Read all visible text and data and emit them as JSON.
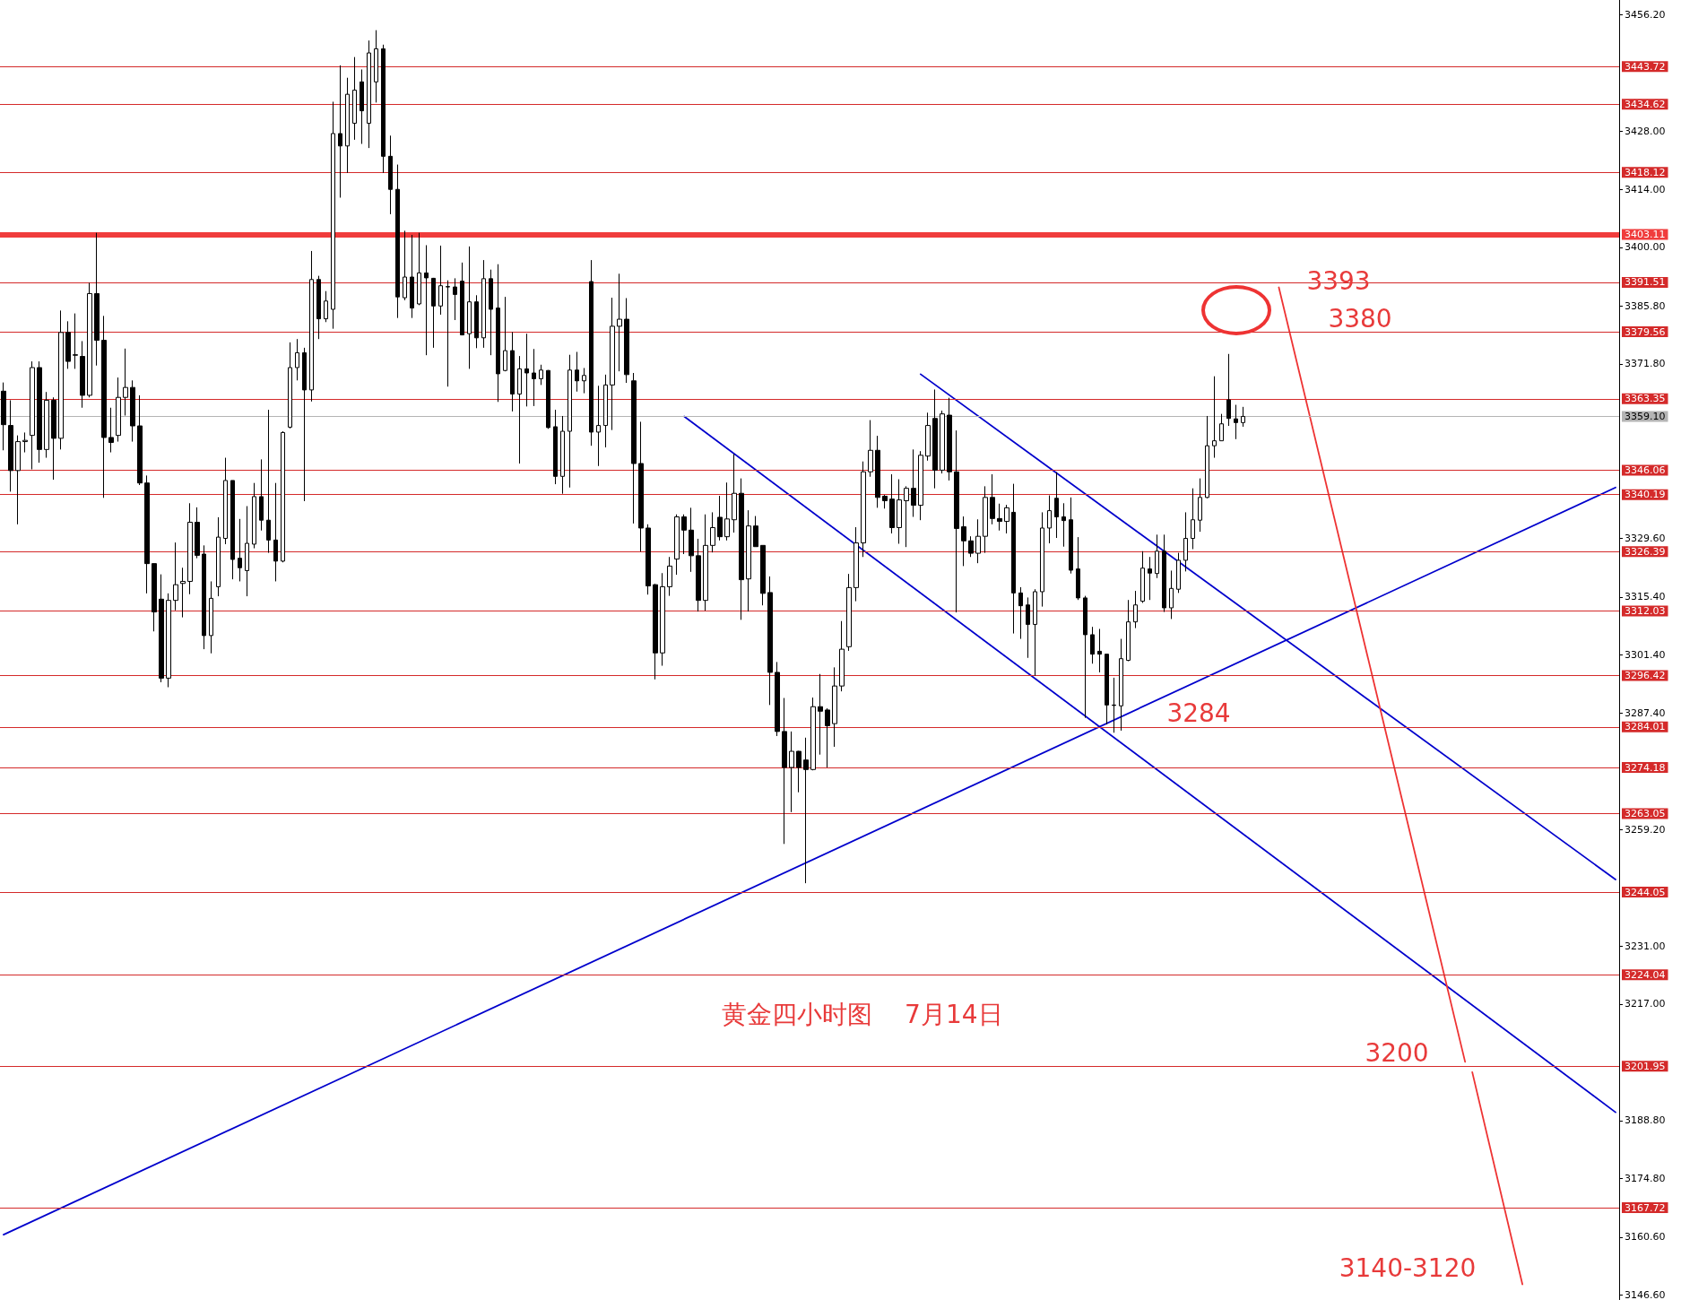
{
  "chart_data": {
    "type": "candlestick",
    "title": "黄金四小时图    7月14日",
    "color": "#000000",
    "grid": false,
    "tick_labels": "y",
    "categories": [
      null,
      null,
      null,
      null,
      null,
      null,
      null,
      null,
      null,
      null,
      null,
      null,
      null,
      null,
      null,
      null,
      null,
      null,
      null,
      null,
      null,
      null,
      null,
      null,
      null,
      null,
      null,
      null,
      null,
      null,
      null,
      null,
      null,
      null,
      null,
      null,
      null,
      null,
      null,
      null,
      null,
      null,
      null,
      null,
      null,
      null,
      null,
      null,
      null,
      null,
      null,
      null,
      null,
      null,
      null,
      null,
      null,
      null,
      null,
      null,
      null,
      null,
      null,
      null,
      null,
      null,
      null,
      null,
      null,
      null,
      null,
      null,
      null,
      null,
      null,
      null,
      null,
      null,
      null,
      null,
      null,
      null,
      null,
      null,
      null,
      null,
      null,
      null,
      null,
      null,
      null,
      null,
      null,
      null,
      null,
      null,
      null,
      null,
      null,
      null,
      null,
      null,
      null,
      null,
      null,
      null,
      null,
      null,
      null,
      null,
      null,
      null,
      null,
      null,
      null,
      null,
      null,
      null,
      null,
      null,
      null,
      null,
      null,
      null,
      null,
      null,
      null,
      null,
      null,
      null,
      null,
      null,
      null,
      null,
      null,
      null,
      null,
      null,
      null,
      null,
      null,
      null,
      null,
      null,
      null,
      null,
      null,
      null,
      null,
      null,
      null,
      null,
      null,
      null,
      null,
      null,
      null,
      null,
      null,
      null,
      null,
      null,
      null,
      null,
      null,
      null,
      null,
      null,
      null,
      null,
      null,
      null,
      null,
      null,
      null,
      null,
      null,
      null,
      null,
      null,
      null,
      null,
      null,
      null,
      null,
      null,
      null,
      null,
      null,
      null,
      null,
      null,
      null,
      null,
      null,
      null,
      null,
      null,
      null,
      null,
      null,
      null,
      null,
      null,
      null,
      null,
      null,
      null,
      null,
      null,
      null,
      null,
      null,
      null,
      null,
      null,
      null,
      null,
      null,
      null,
      null,
      null,
      null,
      null,
      null,
      null
    ],
    "ylim": [
      3145.5,
      3459.8
    ],
    "yticks": [
      {
        "value": 3456.2,
        "label": "3456.20"
      },
      {
        "value": 3428,
        "label": "3428.00"
      },
      {
        "value": 3414,
        "label": "3414.00"
      },
      {
        "value": 3400,
        "label": "3400.00"
      },
      {
        "value": 3385.8,
        "label": "3385.80"
      },
      {
        "value": 3371.8,
        "label": "3371.80"
      },
      {
        "value": 3329.6,
        "label": "3329.60"
      },
      {
        "value": 3315.4,
        "label": "3315.40"
      },
      {
        "value": 3301.4,
        "label": "3301.40"
      },
      {
        "value": 3287.4,
        "label": "3287.40"
      },
      {
        "value": 3259.2,
        "label": "3259.20"
      },
      {
        "value": 3231,
        "label": "3231.00"
      },
      {
        "value": 3217,
        "label": "3217.00"
      },
      {
        "value": 3188.8,
        "label": "3188.80"
      },
      {
        "value": 3174.8,
        "label": "3174.80"
      },
      {
        "value": 3160.6,
        "label": "3160.60"
      },
      {
        "value": 3146.6,
        "label": "3146.60"
      }
    ],
    "ohlc": [
      [
        3365.2,
        3367.3,
        3350.9,
        3357.1
      ],
      [
        3356.9,
        3363.0,
        3340.9,
        3346.0
      ],
      [
        3346.0,
        3354.5,
        3333.0,
        3353.0
      ],
      [
        3353.0,
        3355.2,
        3350.4,
        3353.3
      ],
      [
        3354.5,
        3372.4,
        3346.3,
        3370.9
      ],
      [
        3370.9,
        3372.4,
        3347.9,
        3351.1
      ],
      [
        3351.1,
        3365.0,
        3349.1,
        3363.0
      ],
      [
        3363.0,
        3363.7,
        3343.8,
        3353.8
      ],
      [
        3353.8,
        3384.7,
        3351.1,
        3379.4
      ],
      [
        3379.4,
        3382.1,
        3370.6,
        3372.4
      ],
      [
        3374.0,
        3384.0,
        3370.6,
        3373.9
      ],
      [
        3373.6,
        3377.3,
        3361.2,
        3364.2
      ],
      [
        3364.2,
        3391.4,
        3363.7,
        3388.8
      ],
      [
        3388.8,
        3403.5,
        3371.4,
        3377.5
      ],
      [
        3377.5,
        3383.4,
        3339.4,
        3354.0
      ],
      [
        3354.0,
        3361.2,
        3350.4,
        3352.8
      ],
      [
        3354.5,
        3368.5,
        3353.0,
        3363.7
      ],
      [
        3363.7,
        3375.5,
        3359.3,
        3366.1
      ],
      [
        3366.1,
        3367.8,
        3353.0,
        3356.8
      ],
      [
        3356.8,
        3364.2,
        3342.5,
        3343.0
      ],
      [
        3343.0,
        3344.8,
        3316.3,
        3323.5
      ],
      [
        3323.5,
        3323.5,
        3307.1,
        3311.8
      ],
      [
        3314.9,
        3320.9,
        3294.8,
        3295.8
      ],
      [
        3295.8,
        3316.3,
        3293.6,
        3314.6
      ],
      [
        3314.6,
        3328.6,
        3312.2,
        3318.4
      ],
      [
        3318.7,
        3322.5,
        3310.5,
        3319.2
      ],
      [
        3319.2,
        3338.1,
        3316.1,
        3333.5
      ],
      [
        3333.5,
        3337.1,
        3324.8,
        3325.5
      ],
      [
        3325.8,
        3327.9,
        3302.8,
        3306.1
      ],
      [
        3306.1,
        3319.2,
        3301.8,
        3315.1
      ],
      [
        3317.9,
        3334.7,
        3315.6,
        3329.9
      ],
      [
        3329.6,
        3349.1,
        3328.2,
        3343.6
      ],
      [
        3343.6,
        3343.6,
        3319.7,
        3324.5
      ],
      [
        3324.8,
        3334.3,
        3319.2,
        3322.5
      ],
      [
        3321.8,
        3337.4,
        3315.6,
        3328.4
      ],
      [
        3328.2,
        3343.0,
        3327.2,
        3339.7
      ],
      [
        3339.7,
        3348.7,
        3331.5,
        3334.0
      ],
      [
        3334.0,
        3360.7,
        3326.1,
        3329.2
      ],
      [
        3329.2,
        3343.0,
        3319.2,
        3324.1
      ],
      [
        3324.1,
        3355.5,
        3323.8,
        3355.2
      ],
      [
        3356.5,
        3377.0,
        3356.2,
        3370.9
      ],
      [
        3370.9,
        3377.8,
        3367.8,
        3374.5
      ],
      [
        3374.5,
        3375.7,
        3338.6,
        3365.5
      ],
      [
        3365.5,
        3399.1,
        3362.7,
        3392.2
      ],
      [
        3392.2,
        3393.1,
        3377.8,
        3382.7
      ],
      [
        3382.7,
        3389.4,
        3381.9,
        3387.0
      ],
      [
        3385.0,
        3435.2,
        3380.3,
        3427.5
      ],
      [
        3427.5,
        3444.0,
        3412.0,
        3424.5
      ],
      [
        3424.5,
        3441.0,
        3418.0,
        3437.0
      ],
      [
        3430.0,
        3446.0,
        3426.0,
        3438.0
      ],
      [
        3440.0,
        3443.0,
        3425.0,
        3433.0
      ],
      [
        3430.0,
        3450.0,
        3424.0,
        3447.0
      ],
      [
        3440.0,
        3452.5,
        3435.0,
        3448.0
      ],
      [
        3448.0,
        3449.0,
        3418.0,
        3422.0
      ],
      [
        3422.0,
        3427.0,
        3408.0,
        3414.0
      ],
      [
        3414.0,
        3420.0,
        3382.9,
        3388.0
      ],
      [
        3387.8,
        3404.0,
        3387.2,
        3392.8
      ],
      [
        3392.8,
        3403.0,
        3382.9,
        3385.3
      ],
      [
        3386.3,
        3403.5,
        3386.0,
        3393.8
      ],
      [
        3393.8,
        3400.5,
        3373.9,
        3392.6
      ],
      [
        3392.5,
        3392.6,
        3375.7,
        3385.8
      ],
      [
        3385.8,
        3400.4,
        3383.7,
        3390.7
      ],
      [
        3390.4,
        3392.0,
        3366.3,
        3390.5
      ],
      [
        3390.4,
        3392.5,
        3382.4,
        3388.6
      ],
      [
        3391.8,
        3396.3,
        3378.7,
        3378.8
      ],
      [
        3379.1,
        3400.2,
        3370.6,
        3386.8
      ],
      [
        3386.8,
        3388.4,
        3375.6,
        3378.1
      ],
      [
        3378.1,
        3396.9,
        3375.7,
        3392.4
      ],
      [
        3392.4,
        3394.6,
        3373.9,
        3385.0
      ],
      [
        3385.3,
        3395.9,
        3362.6,
        3369.4
      ],
      [
        3370.2,
        3388.0,
        3370.0,
        3375.0
      ],
      [
        3375.0,
        3379.5,
        3360.3,
        3364.5
      ],
      [
        3364.5,
        3373.7,
        3347.7,
        3370.6
      ],
      [
        3370.6,
        3379.1,
        3361.5,
        3369.6
      ],
      [
        3369.6,
        3375.4,
        3361.6,
        3368.2
      ],
      [
        3368.2,
        3371.6,
        3366.7,
        3370.3
      ],
      [
        3370.2,
        3370.3,
        3356.1,
        3356.4
      ],
      [
        3356.6,
        3360.7,
        3342.7,
        3344.6
      ],
      [
        3344.6,
        3359.2,
        3340.4,
        3355.5
      ],
      [
        3355.5,
        3374.0,
        3341.9,
        3370.3
      ],
      [
        3370.3,
        3374.7,
        3365.1,
        3367.7
      ],
      [
        3367.7,
        3370.8,
        3364.7,
        3369.0
      ],
      [
        3391.7,
        3396.9,
        3352.0,
        3355.3
      ],
      [
        3355.3,
        3366.5,
        3347.1,
        3356.9
      ],
      [
        3356.9,
        3369.2,
        3351.6,
        3366.7
      ],
      [
        3366.7,
        3387.8,
        3355.8,
        3380.9
      ],
      [
        3380.9,
        3393.6,
        3370.0,
        3382.6
      ],
      [
        3382.6,
        3387.7,
        3367.2,
        3369.2
      ],
      [
        3367.7,
        3369.6,
        3333.2,
        3347.7
      ],
      [
        3347.7,
        3357.8,
        3326.4,
        3332.1
      ],
      [
        3332.1,
        3333.0,
        3316.0,
        3318.1
      ],
      [
        3318.4,
        3318.6,
        3295.5,
        3301.9
      ],
      [
        3301.9,
        3321.2,
        3298.8,
        3317.9
      ],
      [
        3317.9,
        3325.1,
        3315.7,
        3322.9
      ],
      [
        3324.6,
        3335.4,
        3320.8,
        3334.8
      ],
      [
        3334.8,
        3335.4,
        3325.8,
        3331.6
      ],
      [
        3331.6,
        3337.0,
        3321.5,
        3325.4
      ],
      [
        3325.4,
        3329.5,
        3311.9,
        3314.6
      ],
      [
        3314.6,
        3335.4,
        3312.1,
        3327.9
      ],
      [
        3327.9,
        3335.9,
        3326.2,
        3332.2
      ],
      [
        3334.7,
        3339.9,
        3329.1,
        3330.0
      ],
      [
        3330.0,
        3343.1,
        3329.1,
        3334.3
      ],
      [
        3334.1,
        3350.0,
        3331.0,
        3340.5
      ],
      [
        3340.5,
        3344.1,
        3309.9,
        3319.6
      ],
      [
        3319.8,
        3336.4,
        3311.9,
        3332.6
      ],
      [
        3332.6,
        3335.0,
        3327.6,
        3327.6
      ],
      [
        3327.9,
        3327.9,
        3313.4,
        3316.3
      ],
      [
        3316.5,
        3320.4,
        3289.3,
        3297.2
      ],
      [
        3297.2,
        3299.7,
        3281.8,
        3282.9
      ],
      [
        3282.9,
        3291.0,
        3255.7,
        3274.2
      ],
      [
        3274.2,
        3282.9,
        3263.4,
        3278.1
      ],
      [
        3278.1,
        3278.2,
        3268.2,
        3274.2
      ],
      [
        3276.0,
        3281.4,
        3246.2,
        3273.7
      ],
      [
        3273.7,
        3291.1,
        3273.5,
        3288.9
      ],
      [
        3288.9,
        3296.8,
        3277.3,
        3287.8
      ],
      [
        3288.1,
        3288.5,
        3274.2,
        3284.3
      ],
      [
        3284.8,
        3298.4,
        3279.2,
        3293.9
      ],
      [
        3293.9,
        3309.6,
        3292.6,
        3302.8
      ],
      [
        3303.4,
        3321.0,
        3302.4,
        3317.7
      ],
      [
        3317.7,
        3332.3,
        3314.4,
        3328.5
      ],
      [
        3328.5,
        3348.2,
        3325.1,
        3345.7
      ],
      [
        3345.7,
        3358.2,
        3344.5,
        3350.9
      ],
      [
        3350.9,
        3354.4,
        3337.0,
        3339.5
      ],
      [
        3339.8,
        3340.1,
        3336.8,
        3338.7
      ],
      [
        3339.1,
        3345.1,
        3330.8,
        3332.2
      ],
      [
        3332.2,
        3343.9,
        3328.3,
        3338.9
      ],
      [
        3338.7,
        3342.2,
        3327.5,
        3341.7
      ],
      [
        3341.7,
        3351.1,
        3334.8,
        3337.6
      ],
      [
        3337.6,
        3350.7,
        3334.0,
        3349.7
      ],
      [
        3349.5,
        3360.0,
        3348.4,
        3356.9
      ],
      [
        3358.6,
        3365.6,
        3341.7,
        3346.1
      ],
      [
        3346.1,
        3360.5,
        3345.3,
        3359.7
      ],
      [
        3359.4,
        3363.6,
        3343.6,
        3345.7
      ],
      [
        3345.7,
        3355.7,
        3311.7,
        3332.0
      ],
      [
        3332.4,
        3334.9,
        3322.9,
        3329.0
      ],
      [
        3329.0,
        3330.1,
        3325.1,
        3326.0
      ],
      [
        3326.0,
        3334.2,
        3323.6,
        3330.1
      ],
      [
        3330.1,
        3342.2,
        3326.1,
        3339.5
      ],
      [
        3339.5,
        3345.1,
        3333.0,
        3334.4
      ],
      [
        3334.4,
        3338.0,
        3331.5,
        3333.7
      ],
      [
        3333.7,
        3337.7,
        3330.8,
        3337.0
      ],
      [
        3335.9,
        3342.8,
        3306.6,
        3316.4
      ],
      [
        3316.4,
        3317.8,
        3305.3,
        3313.3
      ],
      [
        3313.5,
        3315.3,
        3300.7,
        3308.8
      ],
      [
        3308.8,
        3317.3,
        3296.4,
        3316.7
      ],
      [
        3316.7,
        3335.9,
        3313.1,
        3332.1
      ],
      [
        3332.1,
        3340.0,
        3328.4,
        3336.3
      ],
      [
        3339.3,
        3345.6,
        3329.7,
        3334.8
      ],
      [
        3334.8,
        3338.1,
        3327.6,
        3333.9
      ],
      [
        3334.1,
        3339.5,
        3321.1,
        3321.9
      ],
      [
        3322.2,
        3329.9,
        3314.7,
        3315.2
      ],
      [
        3315.2,
        3315.7,
        3286.2,
        3306.3
      ],
      [
        3306.3,
        3308.2,
        3299.3,
        3301.6
      ],
      [
        3302.3,
        3307.7,
        3297.2,
        3301.6
      ],
      [
        3301.6,
        3301.6,
        3284.6,
        3289.3
      ],
      [
        3289.3,
        3295.9,
        3282.6,
        3289.2
      ],
      [
        3289.1,
        3305.3,
        3283.1,
        3300.5
      ],
      [
        3300.1,
        3314.7,
        3299.9,
        3309.4
      ],
      [
        3309.4,
        3316.9,
        3307.9,
        3313.5
      ],
      [
        3314.4,
        3326.5,
        3314.0,
        3322.4
      ],
      [
        3322.2,
        3325.1,
        3314.7,
        3321.2
      ],
      [
        3321.1,
        3330.5,
        3320.0,
        3326.5
      ],
      [
        3326.5,
        3330.5,
        3311.8,
        3312.8
      ],
      [
        3312.8,
        3321.8,
        3310.1,
        3317.5
      ],
      [
        3317.3,
        3326.1,
        3316.4,
        3324.3
      ],
      [
        3324.3,
        3335.9,
        3321.6,
        3329.6
      ],
      [
        3329.6,
        3341.7,
        3327.0,
        3334.1
      ],
      [
        3334.0,
        3344.1,
        3331.2,
        3339.5
      ],
      [
        3339.5,
        3359.2,
        3339.3,
        3352.0
      ],
      [
        3352.0,
        3368.8,
        3349.1,
        3353.2
      ],
      [
        3353.2,
        3359.7,
        3353.2,
        3357.3
      ],
      [
        3363.1,
        3374.2,
        3356.8,
        3358.6
      ],
      [
        3358.5,
        3361.9,
        3353.6,
        3357.6
      ],
      [
        3357.6,
        3361.4,
        3356.6,
        3359.1
      ],
      null,
      null,
      null,
      null,
      null,
      null,
      null,
      null,
      null,
      null,
      null,
      null,
      null,
      null,
      null,
      null,
      null,
      null,
      null,
      null,
      null,
      null,
      null,
      null,
      null,
      null,
      null,
      null,
      null,
      null,
      null,
      null,
      null,
      null,
      null,
      null,
      null,
      null,
      null,
      null,
      null,
      null,
      null,
      null,
      null,
      null,
      null,
      null,
      null,
      null,
      null,
      null
    ],
    "series": [
      {
        "type": "line",
        "color": "#0000cc",
        "values": [
          3161.2,
          null,
          null,
          null,
          null,
          null,
          null,
          null,
          null,
          null,
          null,
          null,
          null,
          null,
          null,
          null,
          null,
          null,
          null,
          null,
          null,
          null,
          null,
          null,
          null,
          null,
          null,
          null,
          null,
          null,
          null,
          null,
          null,
          null,
          null,
          null,
          null,
          null,
          null,
          null,
          null,
          null,
          null,
          null,
          null,
          null,
          null,
          null,
          null,
          null,
          null,
          null,
          null,
          null,
          null,
          null,
          null,
          null,
          null,
          null,
          null,
          null,
          null,
          null,
          null,
          null,
          null,
          null,
          null,
          null,
          null,
          null,
          null,
          null,
          null,
          null,
          null,
          null,
          null,
          null,
          null,
          null,
          null,
          null,
          null,
          null,
          null,
          null,
          null,
          null,
          null,
          null,
          null,
          null,
          null,
          null,
          null,
          null,
          null,
          null,
          null,
          null,
          null,
          null,
          null,
          null,
          null,
          null,
          null,
          null,
          null,
          null,
          null,
          null,
          null,
          null,
          null,
          null,
          null,
          null,
          null,
          null,
          null,
          null,
          null,
          null,
          null,
          null,
          null,
          null,
          null,
          null,
          null,
          null,
          null,
          null,
          null,
          null,
          null,
          null,
          null,
          null,
          null,
          null,
          null,
          null,
          null,
          null,
          null,
          null,
          null,
          null,
          null,
          null,
          null,
          null,
          null,
          null,
          null,
          null,
          null,
          null,
          null,
          null,
          null,
          null,
          null,
          null,
          null,
          null,
          null,
          null,
          null,
          null,
          null,
          null,
          null,
          null,
          null,
          null,
          null,
          null,
          null,
          null,
          null,
          null,
          null,
          null,
          null,
          null,
          null,
          null,
          null,
          null,
          null,
          null,
          null,
          null,
          null,
          null,
          null,
          null,
          null,
          null,
          null,
          null,
          null,
          null,
          null,
          null,
          null,
          null,
          null,
          null,
          null,
          null,
          null,
          null,
          null,
          null,
          null,
          null,
          null,
          null,
          null,
          3341.9
        ]
      },
      {
        "type": "line",
        "color": "#0000cc",
        "values": [
          null,
          null,
          null,
          null,
          null,
          null,
          null,
          null,
          null,
          null,
          null,
          null,
          null,
          null,
          null,
          null,
          null,
          null,
          null,
          null,
          null,
          null,
          null,
          null,
          null,
          null,
          null,
          null,
          null,
          null,
          null,
          null,
          null,
          null,
          null,
          null,
          null,
          null,
          null,
          null,
          null,
          null,
          null,
          null,
          null,
          null,
          null,
          null,
          null,
          null,
          null,
          null,
          null,
          null,
          null,
          null,
          null,
          null,
          null,
          null,
          null,
          null,
          null,
          null,
          null,
          null,
          null,
          null,
          null,
          null,
          null,
          null,
          null,
          null,
          null,
          null,
          null,
          null,
          null,
          null,
          null,
          null,
          null,
          null,
          null,
          null,
          null,
          null,
          null,
          null,
          null,
          null,
          null,
          null,
          null,
          null,
          null,
          null,
          null,
          null,
          null,
          null,
          null,
          null,
          null,
          null,
          null,
          null,
          null,
          null,
          null,
          null,
          null,
          null,
          null,
          null,
          null,
          null,
          null,
          null,
          null,
          null,
          null,
          null,
          null,
          null,
          null,
          null,
          3369.3,
          null,
          null,
          null,
          null,
          null,
          null,
          null,
          null,
          null,
          null,
          null,
          null,
          null,
          null,
          null,
          null,
          null,
          null,
          null,
          null,
          null,
          null,
          null,
          null,
          null,
          null,
          null,
          null,
          null,
          null,
          null,
          null,
          null,
          null,
          null,
          null,
          null,
          null,
          null,
          null,
          null,
          null,
          null,
          null,
          null,
          null,
          null,
          null,
          null,
          null,
          null,
          null,
          null,
          null,
          null,
          null,
          null,
          null,
          null,
          null,
          null,
          null,
          null,
          null,
          null,
          null,
          null,
          null,
          null,
          null,
          null,
          null,
          null,
          null,
          null,
          null,
          null,
          null,
          null,
          null,
          null,
          null,
          null,
          null,
          null,
          null,
          null,
          null,
          null,
          null,
          null,
          null,
          null,
          null,
          null,
          null,
          3247.1
        ]
      },
      {
        "type": "line",
        "color": "#0000cc",
        "values": [
          null,
          null,
          null,
          null,
          null,
          null,
          null,
          null,
          null,
          null,
          null,
          null,
          null,
          null,
          null,
          null,
          null,
          null,
          null,
          null,
          null,
          null,
          null,
          null,
          null,
          null,
          null,
          null,
          null,
          null,
          null,
          null,
          null,
          null,
          null,
          null,
          null,
          null,
          null,
          null,
          null,
          null,
          null,
          null,
          null,
          null,
          null,
          null,
          null,
          null,
          null,
          null,
          null,
          null,
          null,
          null,
          null,
          null,
          null,
          null,
          null,
          null,
          null,
          null,
          null,
          null,
          null,
          null,
          null,
          null,
          null,
          null,
          null,
          null,
          null,
          null,
          null,
          null,
          null,
          null,
          null,
          null,
          null,
          null,
          null,
          null,
          null,
          null,
          null,
          null,
          null,
          null,
          null,
          null,
          null,
          3359.1,
          null,
          null,
          null,
          null,
          null,
          null,
          null,
          null,
          null,
          null,
          null,
          null,
          null,
          null,
          null,
          null,
          null,
          null,
          null,
          null,
          null,
          null,
          null,
          null,
          null,
          null,
          null,
          null,
          null,
          null,
          null,
          null,
          null,
          null,
          null,
          null,
          null,
          null,
          null,
          null,
          null,
          null,
          null,
          null,
          null,
          null,
          null,
          null,
          null,
          null,
          null,
          null,
          null,
          null,
          null,
          null,
          null,
          null,
          null,
          null,
          null,
          null,
          null,
          null,
          null,
          null,
          null,
          null,
          null,
          null,
          null,
          null,
          null,
          null,
          null,
          null,
          null,
          null,
          null,
          null,
          null,
          null,
          null,
          null,
          null,
          null,
          null,
          null,
          null,
          null,
          null,
          null,
          null,
          null,
          null,
          null,
          null,
          null,
          null,
          null,
          null,
          null,
          null,
          null,
          null,
          null,
          null,
          null,
          null,
          null,
          null,
          null,
          null,
          null,
          null,
          null,
          null,
          null,
          null,
          null,
          null,
          null,
          null,
          null,
          null,
          null,
          null,
          null,
          null,
          3190.8
        ]
      },
      {
        "type": "line",
        "color": "#ee3333",
        "values": [
          null,
          null,
          null,
          null,
          null,
          null,
          null,
          null,
          null,
          null,
          null,
          null,
          null,
          null,
          null,
          null,
          null,
          null,
          null,
          null,
          null,
          null,
          null,
          null,
          null,
          null,
          null,
          null,
          null,
          null,
          null,
          null,
          null,
          null,
          null,
          null,
          null,
          null,
          null,
          null,
          null,
          null,
          null,
          null,
          null,
          null,
          null,
          null,
          null,
          null,
          null,
          null,
          null,
          null,
          null,
          null,
          null,
          null,
          null,
          null,
          null,
          null,
          null,
          null,
          null,
          null,
          null,
          null,
          null,
          null,
          null,
          null,
          null,
          null,
          null,
          null,
          null,
          null,
          null,
          null,
          null,
          null,
          null,
          null,
          null,
          null,
          null,
          null,
          null,
          null,
          null,
          null,
          null,
          null,
          null,
          null,
          null,
          null,
          null,
          null,
          null,
          null,
          null,
          null,
          null,
          null,
          null,
          null,
          null,
          null,
          null,
          null,
          null,
          null,
          null,
          null,
          null,
          null,
          null,
          null,
          null,
          null,
          null,
          null,
          null,
          null,
          null,
          null,
          null,
          null,
          null,
          null,
          null,
          null,
          null,
          null,
          null,
          null,
          null,
          null,
          null,
          null,
          null,
          null,
          null,
          null,
          null,
          null,
          null,
          null,
          null,
          null,
          null,
          null,
          null,
          null,
          null,
          null,
          null,
          null,
          null,
          null,
          null,
          null,
          null,
          null,
          null,
          null,
          null,
          null,
          null,
          null,
          null,
          null,
          null,
          null,
          null,
          null,
          3390.3,
          null,
          null,
          null,
          null,
          null,
          null,
          null,
          null,
          null,
          null,
          null,
          null,
          null,
          null,
          null,
          null,
          null,
          null,
          null,
          null,
          null,
          null,
          null,
          null,
          null,
          3203,
          null,
          null,
          null,
          null,
          null,
          null,
          null,
          null,
          null,
          null,
          null,
          null,
          null,
          null,
          null,
          null,
          null,
          null,
          null,
          null,
          null
        ]
      },
      {
        "type": "line",
        "color": "#ee3333",
        "values": [
          null,
          null,
          null,
          null,
          null,
          null,
          null,
          null,
          null,
          null,
          null,
          null,
          null,
          null,
          null,
          null,
          null,
          null,
          null,
          null,
          null,
          null,
          null,
          null,
          null,
          null,
          null,
          null,
          null,
          null,
          null,
          null,
          null,
          null,
          null,
          null,
          null,
          null,
          null,
          null,
          null,
          null,
          null,
          null,
          null,
          null,
          null,
          null,
          null,
          null,
          null,
          null,
          null,
          null,
          null,
          null,
          null,
          null,
          null,
          null,
          null,
          null,
          null,
          null,
          null,
          null,
          null,
          null,
          null,
          null,
          null,
          null,
          null,
          null,
          null,
          null,
          null,
          null,
          null,
          null,
          null,
          null,
          null,
          null,
          null,
          null,
          null,
          null,
          null,
          null,
          null,
          null,
          null,
          null,
          null,
          null,
          null,
          null,
          null,
          null,
          null,
          null,
          null,
          null,
          null,
          null,
          null,
          null,
          null,
          null,
          null,
          null,
          null,
          null,
          null,
          null,
          null,
          null,
          null,
          null,
          null,
          null,
          null,
          null,
          null,
          null,
          null,
          null,
          null,
          null,
          null,
          null,
          null,
          null,
          null,
          null,
          null,
          null,
          null,
          null,
          null,
          null,
          null,
          null,
          null,
          null,
          null,
          null,
          null,
          null,
          null,
          null,
          null,
          null,
          null,
          null,
          null,
          null,
          null,
          null,
          null,
          null,
          null,
          null,
          null,
          null,
          null,
          null,
          null,
          null,
          null,
          null,
          null,
          null,
          null,
          null,
          null,
          null,
          null,
          null,
          null,
          null,
          null,
          null,
          null,
          null,
          null,
          null,
          null,
          null,
          null,
          null,
          null,
          null,
          null,
          null,
          null,
          null,
          null,
          null,
          null,
          null,
          null,
          null,
          null,
          3200.5,
          null,
          null,
          null,
          null,
          null,
          null,
          3149.2,
          null,
          null,
          null,
          null,
          null,
          null,
          null,
          null,
          null,
          null,
          null,
          null,
          null
        ]
      }
    ],
    "ref_lines": [
      {
        "axis": "y",
        "value": 3443.72,
        "label": "3443.72",
        "color": "#d42a2a"
      },
      {
        "axis": "y",
        "value": 3434.62,
        "label": "3434.62",
        "color": "#d42a2a"
      },
      {
        "axis": "y",
        "value": 3418.12,
        "label": "3418.12",
        "color": "#d42a2a"
      },
      {
        "axis": "y",
        "value": 3403.11,
        "label": "3403.11",
        "color": "#f03c3c"
      },
      {
        "axis": "y",
        "value": 3391.51,
        "label": "3391.51",
        "color": "#d42a2a"
      },
      {
        "axis": "y",
        "value": 3379.56,
        "label": "3379.56",
        "color": "#d42a2a"
      },
      {
        "axis": "y",
        "value": 3363.35,
        "label": "3363.35",
        "color": "#d42a2a"
      },
      {
        "axis": "y",
        "value": 3359.1,
        "label": "3359.10",
        "color": "#b4b4b4"
      },
      {
        "axis": "y",
        "value": 3346.06,
        "label": "3346.06",
        "color": "#d42a2a"
      },
      {
        "axis": "y",
        "value": 3340.19,
        "label": "3340.19",
        "color": "#d42a2a"
      },
      {
        "axis": "y",
        "value": 3326.39,
        "label": "3326.39",
        "color": "#d42a2a"
      },
      {
        "axis": "y",
        "value": 3312.03,
        "label": "3312.03",
        "color": "#d42a2a"
      },
      {
        "axis": "y",
        "value": 3296.42,
        "label": "3296.42",
        "color": "#d42a2a"
      },
      {
        "axis": "y",
        "value": 3284.01,
        "label": "3284.01",
        "color": "#d42a2a"
      },
      {
        "axis": "y",
        "value": 3274.18,
        "label": "3274.18",
        "color": "#d42a2a"
      },
      {
        "axis": "y",
        "value": 3263.05,
        "label": "3263.05",
        "color": "#d42a2a"
      },
      {
        "axis": "y",
        "value": 3244.05,
        "label": "3244.05",
        "color": "#d42a2a"
      },
      {
        "axis": "y",
        "value": 3224.04,
        "label": "3224.04",
        "color": "#d42a2a"
      },
      {
        "axis": "y",
        "value": 3201.95,
        "label": "3201.95",
        "color": "#d42a2a"
      },
      {
        "axis": "y",
        "value": 3167.72,
        "label": "3167.72",
        "color": "#d42a2a"
      }
    ],
    "annotations": [
      "3393",
      "3380",
      "3284",
      "3200",
      "3140-3120"
    ]
  }
}
